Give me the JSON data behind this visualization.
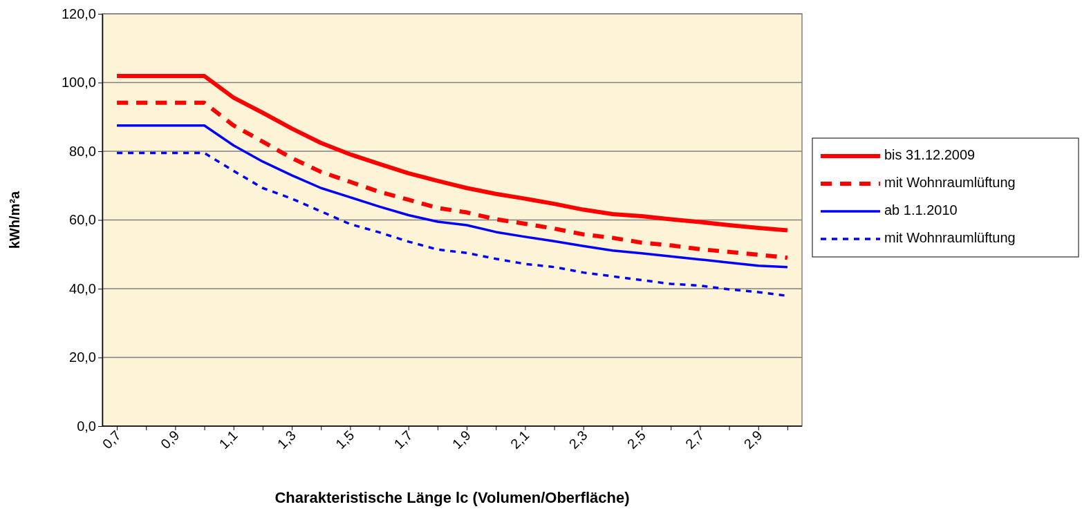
{
  "chart_data": {
    "type": "line",
    "xlabel": "Charakteristische Länge lc (Volumen/Oberfläche)",
    "ylabel": "kWh/m²a",
    "categories": [
      "0,7",
      null,
      "0,9",
      null,
      "1,1",
      null,
      "1,3",
      null,
      "1,5",
      null,
      "1,7",
      null,
      "1,9",
      null,
      "2,1",
      null,
      "2,3",
      null,
      "2,5",
      null,
      "2,7",
      null,
      "2,9",
      null
    ],
    "ylim": [
      0,
      120
    ],
    "yticks": [
      {
        "value": 0,
        "label": "0,0"
      },
      {
        "value": 20,
        "label": "20,0"
      },
      {
        "value": 40,
        "label": "40,0"
      },
      {
        "value": 60,
        "label": "60,0"
      },
      {
        "value": 80,
        "label": "80,0"
      },
      {
        "value": 100,
        "label": "100,0"
      },
      {
        "value": 120,
        "label": "120,0"
      }
    ],
    "grid": "y",
    "legend": "right",
    "marker": "none",
    "series": [
      {
        "name": "bis 31.12.2009",
        "color": "#ff0000",
        "line_style": "solid",
        "values": [
          101.9,
          101.9,
          101.9,
          101.9,
          95.6,
          91.2,
          86.6,
          82.4,
          79.1,
          76.3,
          73.6,
          71.4,
          69.3,
          67.6,
          66.2,
          64.7,
          63.0,
          61.7,
          61.1,
          60.2,
          59.4,
          58.5,
          57.7,
          57.0
        ]
      },
      {
        "name": "mit Wohnraumlüftung",
        "color": "#ff0000",
        "line_style": "dashed",
        "values": [
          94.1,
          94.1,
          94.1,
          94.1,
          87.5,
          82.8,
          78.0,
          74.0,
          71.1,
          68.2,
          65.9,
          63.5,
          62.2,
          60.2,
          58.9,
          57.5,
          55.8,
          54.8,
          53.4,
          52.6,
          51.5,
          50.7,
          49.9,
          49.0
        ]
      },
      {
        "name": "ab 1.1.2010",
        "color": "#0000ff",
        "line_style": "solid",
        "values": [
          87.5,
          87.5,
          87.5,
          87.5,
          81.7,
          77.0,
          73.0,
          69.3,
          66.6,
          63.9,
          61.4,
          59.5,
          58.5,
          56.5,
          55.1,
          53.8,
          52.4,
          51.1,
          50.3,
          49.4,
          48.5,
          47.6,
          46.7,
          46.3
        ]
      },
      {
        "name": "mit Wohnraumlüftung",
        "color": "#0000ff",
        "line_style": "dotted",
        "values": [
          79.5,
          79.5,
          79.5,
          79.5,
          74.3,
          69.3,
          66.2,
          62.5,
          58.8,
          56.4,
          53.7,
          51.4,
          50.4,
          48.7,
          47.2,
          46.3,
          44.7,
          43.6,
          42.5,
          41.4,
          40.9,
          39.8,
          39.0,
          37.9
        ]
      }
    ]
  }
}
